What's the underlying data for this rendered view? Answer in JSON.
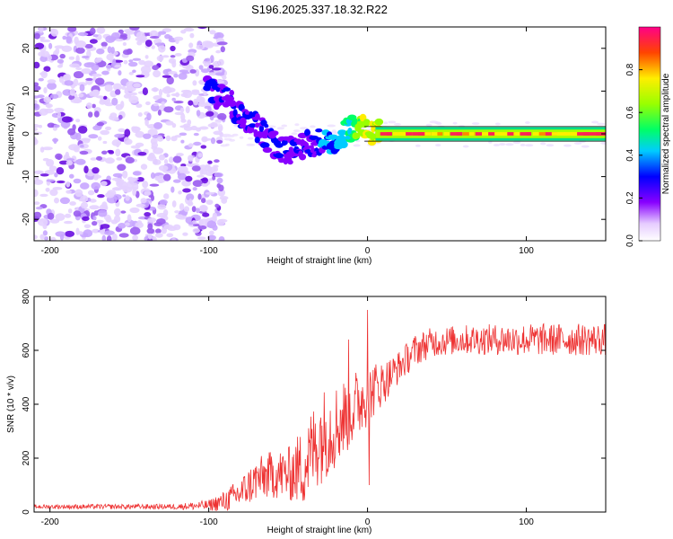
{
  "title": "S196.2025.337.18.32.R22",
  "chart_data": [
    {
      "type": "heatmap",
      "id": "spectrogram",
      "xlabel": "Height of straight line (km)",
      "ylabel": "Frequency (Hz)",
      "xlim": [
        -210,
        150
      ],
      "ylim": [
        -25,
        25
      ],
      "xticks": [
        -200,
        -100,
        0,
        100
      ],
      "yticks": [
        -20,
        -10,
        0,
        10,
        20
      ],
      "colorbar": {
        "label": "Normalized spectral amplitude",
        "range": [
          0,
          1
        ],
        "ticks": [
          0.0,
          0.2,
          0.4,
          0.6,
          0.8
        ]
      },
      "signal_track": [
        {
          "x": -100,
          "f": 10,
          "amp": 0.25
        },
        {
          "x": -90,
          "f": 8,
          "amp": 0.2
        },
        {
          "x": -80,
          "f": 5,
          "amp": 0.25
        },
        {
          "x": -70,
          "f": 2,
          "amp": 0.2
        },
        {
          "x": -60,
          "f": -2,
          "amp": 0.2
        },
        {
          "x": -50,
          "f": -4,
          "amp": 0.15
        },
        {
          "x": -40,
          "f": -3,
          "amp": 0.2
        },
        {
          "x": -30,
          "f": -2,
          "amp": 0.3
        },
        {
          "x": -20,
          "f": -1,
          "amp": 0.4
        },
        {
          "x": -10,
          "f": 1,
          "amp": 0.6
        },
        {
          "x": 0,
          "f": 1,
          "amp": 0.85
        },
        {
          "x": 10,
          "f": 0,
          "amp": 0.9
        },
        {
          "x": 150,
          "f": 0,
          "amp": 0.95
        }
      ]
    },
    {
      "type": "line",
      "id": "snr",
      "xlabel": "Height of straight line (km)",
      "ylabel": "SNR (10 * v/v)",
      "xlim": [
        -210,
        150
      ],
      "ylim": [
        0,
        800
      ],
      "xticks": [
        -200,
        -100,
        0,
        100
      ],
      "yticks": [
        0,
        200,
        400,
        600,
        800
      ],
      "color": "#ee3333",
      "trend": {
        "x": [
          -210,
          -120,
          -100,
          -90,
          -80,
          -70,
          -60,
          -50,
          -40,
          -30,
          -20,
          -10,
          0,
          10,
          20,
          30,
          40,
          60,
          100,
          150
        ],
        "mean": [
          20,
          20,
          25,
          40,
          70,
          120,
          140,
          140,
          170,
          280,
          320,
          380,
          440,
          480,
          540,
          600,
          630,
          640,
          640,
          640
        ],
        "amp": [
          8,
          10,
          20,
          40,
          60,
          80,
          90,
          100,
          150,
          180,
          160,
          140,
          120,
          80,
          60,
          60,
          55,
          55,
          60,
          60
        ]
      },
      "spikes": [
        {
          "x": 0,
          "y": 750
        },
        {
          "x": 1,
          "y": 100
        },
        {
          "x": -12,
          "y": 640
        }
      ]
    }
  ]
}
